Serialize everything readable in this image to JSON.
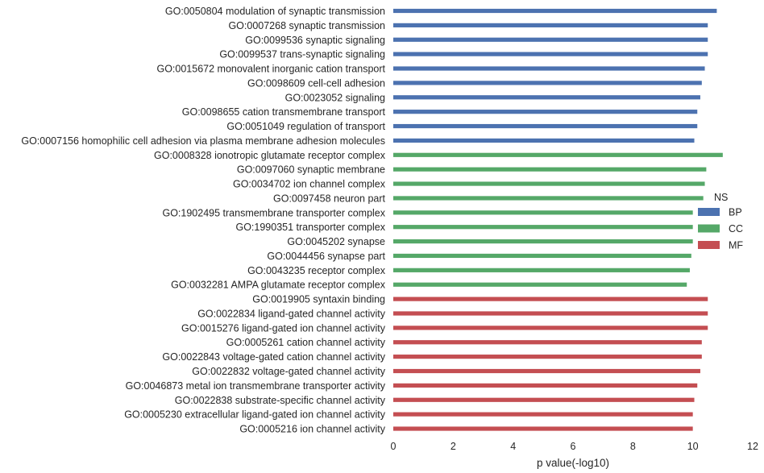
{
  "chart_data": {
    "type": "bar",
    "orientation": "horizontal",
    "xlabel": "p value(-log10)",
    "ylabel": "",
    "xlim": [
      0,
      12
    ],
    "xticks": [
      0,
      2,
      4,
      6,
      8,
      10,
      12
    ],
    "grid": false,
    "legend": {
      "title": "NS",
      "placement": "right",
      "entries": [
        {
          "name": "BP",
          "color": "#4c72b0"
        },
        {
          "name": "CC",
          "color": "#55a868"
        },
        {
          "name": "MF",
          "color": "#c44e52"
        }
      ]
    },
    "categories": [
      {
        "label": "GO:0050804 modulation of synaptic transmission",
        "value": 10.8,
        "group": "BP"
      },
      {
        "label": "GO:0007268 synaptic transmission",
        "value": 10.5,
        "group": "BP"
      },
      {
        "label": "GO:0099536 synaptic signaling",
        "value": 10.5,
        "group": "BP"
      },
      {
        "label": "GO:0099537 trans-synaptic signaling",
        "value": 10.5,
        "group": "BP"
      },
      {
        "label": "GO:0015672 monovalent inorganic cation transport",
        "value": 10.4,
        "group": "BP"
      },
      {
        "label": "GO:0098609 cell-cell adhesion",
        "value": 10.3,
        "group": "BP"
      },
      {
        "label": "GO:0023052 signaling",
        "value": 10.25,
        "group": "BP"
      },
      {
        "label": "GO:0098655 cation transmembrane transport",
        "value": 10.15,
        "group": "BP"
      },
      {
        "label": "GO:0051049 regulation of transport",
        "value": 10.15,
        "group": "BP"
      },
      {
        "label": "GO:0007156 homophilic cell adhesion via plasma membrane adhesion molecules",
        "value": 10.05,
        "group": "BP"
      },
      {
        "label": "GO:0008328 ionotropic glutamate receptor complex",
        "value": 11.0,
        "group": "CC"
      },
      {
        "label": "GO:0097060 synaptic membrane",
        "value": 10.45,
        "group": "CC"
      },
      {
        "label": "GO:0034702 ion channel complex",
        "value": 10.4,
        "group": "CC"
      },
      {
        "label": "GO:0097458 neuron part",
        "value": 10.35,
        "group": "CC"
      },
      {
        "label": "GO:1902495 transmembrane transporter complex",
        "value": 10.0,
        "group": "CC"
      },
      {
        "label": "GO:1990351 transporter complex",
        "value": 10.0,
        "group": "CC"
      },
      {
        "label": "GO:0045202 synapse",
        "value": 10.0,
        "group": "CC"
      },
      {
        "label": "GO:0044456 synapse part",
        "value": 9.95,
        "group": "CC"
      },
      {
        "label": "GO:0043235 receptor complex",
        "value": 9.9,
        "group": "CC"
      },
      {
        "label": "GO:0032281 AMPA glutamate receptor complex",
        "value": 9.8,
        "group": "CC"
      },
      {
        "label": "GO:0019905 syntaxin binding",
        "value": 10.5,
        "group": "MF"
      },
      {
        "label": "GO:0022834 ligand-gated channel activity",
        "value": 10.5,
        "group": "MF"
      },
      {
        "label": "GO:0015276 ligand-gated ion channel activity",
        "value": 10.5,
        "group": "MF"
      },
      {
        "label": "GO:0005261 cation channel activity",
        "value": 10.3,
        "group": "MF"
      },
      {
        "label": "GO:0022843 voltage-gated cation channel activity",
        "value": 10.3,
        "group": "MF"
      },
      {
        "label": "GO:0022832 voltage-gated channel activity",
        "value": 10.25,
        "group": "MF"
      },
      {
        "label": "GO:0046873 metal ion transmembrane transporter activity",
        "value": 10.15,
        "group": "MF"
      },
      {
        "label": "GO:0022838 substrate-specific channel activity",
        "value": 10.05,
        "group": "MF"
      },
      {
        "label": "GO:0005230 extracellular ligand-gated ion channel activity",
        "value": 10.0,
        "group": "MF"
      },
      {
        "label": "GO:0005216 ion channel activity",
        "value": 10.0,
        "group": "MF"
      }
    ]
  }
}
